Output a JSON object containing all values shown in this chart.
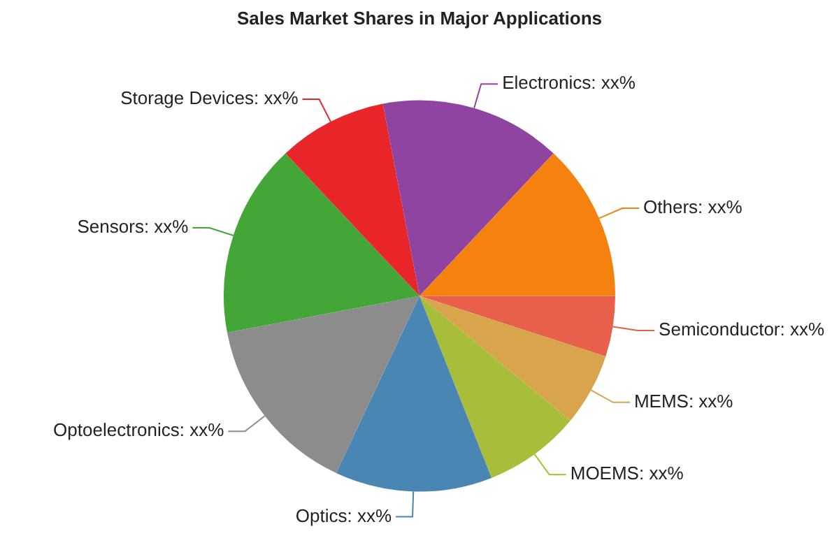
{
  "chart_data": {
    "type": "pie",
    "title": "Sales Market Shares in Major Applications",
    "categories": [
      "Semiconductor",
      "MEMS",
      "MOEMS",
      "Optics",
      "Optoelectronics",
      "Sensors",
      "Storage Devices",
      "Electronics",
      "Others"
    ],
    "values": [
      5,
      6,
      8,
      13,
      15,
      16,
      9,
      15,
      13
    ],
    "colors": [
      "#e8604c",
      "#d9a54c",
      "#a8bd3a",
      "#4a86b4",
      "#8c8c8c",
      "#43a637",
      "#e8262a",
      "#8e44a0",
      "#f5820f"
    ],
    "value_labels": [
      "xx%",
      "xx%",
      "xx%",
      "xx%",
      "xx%",
      "xx%",
      "xx%",
      "xx%",
      "xx%"
    ],
    "legend": false
  }
}
